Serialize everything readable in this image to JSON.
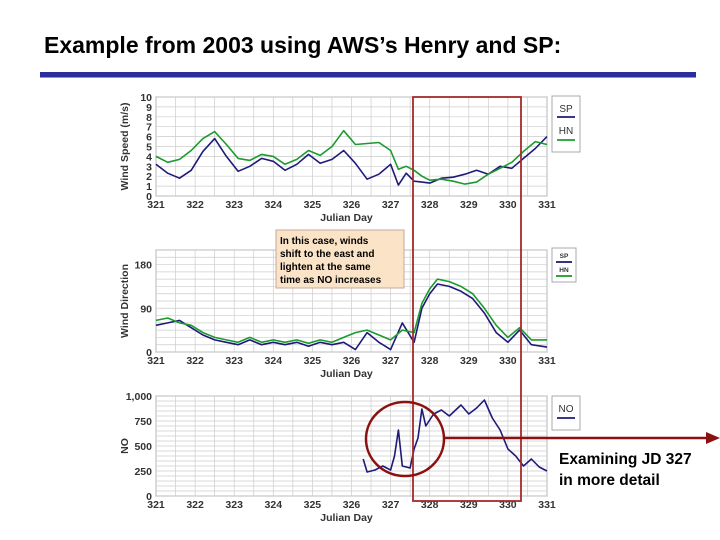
{
  "slide": {
    "title": "Example from 2003 using AWS’s Henry and SP:",
    "note_lines": [
      "Examining JD 327",
      "in more detail"
    ],
    "callout_lines": [
      "In this case, winds",
      "shift to the east and",
      "lighten at the same",
      "time as NO increases"
    ]
  },
  "colors": {
    "sp": "#1f1a7a",
    "hn": "#1b9b2e",
    "highlight": "#a62a2a",
    "circle": "#8b1010",
    "title_rule": "#2b2f9c"
  },
  "chart_data": [
    {
      "type": "line",
      "ylabel": "Wind Speed (m/s)",
      "xlabel": "Julian Day",
      "xlim": [
        321,
        331
      ],
      "ylim": [
        0,
        10
      ],
      "xticks": [
        "321",
        "322",
        "323",
        "324",
        "325",
        "326",
        "327",
        "328",
        "329",
        "330",
        "331"
      ],
      "yticks": [
        "0",
        "1",
        "2",
        "3",
        "4",
        "5",
        "6",
        "7",
        "8",
        "9",
        "10"
      ],
      "legend": [
        "SP",
        "HN"
      ],
      "series": [
        {
          "name": "SP",
          "x": [
            321,
            321.3,
            321.6,
            321.9,
            322.2,
            322.5,
            322.8,
            323.1,
            323.4,
            323.7,
            324,
            324.3,
            324.6,
            324.9,
            325.2,
            325.5,
            325.8,
            326.1,
            326.4,
            326.7,
            327,
            327.2,
            327.4,
            327.6,
            327.8,
            328,
            328.3,
            328.6,
            328.9,
            329.2,
            329.5,
            329.8,
            330.1,
            330.4,
            330.7,
            331
          ],
          "y": [
            3.2,
            2.3,
            1.8,
            2.6,
            4.5,
            5.8,
            4.0,
            2.5,
            3.0,
            3.8,
            3.5,
            2.6,
            3.2,
            4.2,
            3.3,
            3.7,
            4.6,
            3.3,
            1.7,
            2.2,
            3.2,
            1.1,
            2.3,
            1.5,
            1.4,
            1.3,
            1.8,
            1.9,
            2.2,
            2.6,
            2.2,
            3.0,
            2.8,
            3.8,
            4.8,
            6.0
          ]
        },
        {
          "name": "HN",
          "x": [
            321,
            321.3,
            321.6,
            321.9,
            322.2,
            322.5,
            322.8,
            323.1,
            323.4,
            323.7,
            324,
            324.3,
            324.6,
            324.9,
            325.2,
            325.5,
            325.8,
            326.1,
            326.4,
            326.7,
            327,
            327.2,
            327.4,
            327.6,
            327.8,
            328,
            328.3,
            328.6,
            328.9,
            329.2,
            329.5,
            329.8,
            330.1,
            330.4,
            330.7,
            331
          ],
          "y": [
            4.0,
            3.4,
            3.7,
            4.6,
            5.8,
            6.5,
            5.2,
            3.8,
            3.6,
            4.2,
            4.0,
            3.2,
            3.7,
            4.6,
            4.1,
            5.0,
            6.6,
            5.2,
            5.3,
            5.4,
            4.6,
            2.7,
            3.0,
            2.6,
            2.0,
            1.6,
            1.7,
            1.5,
            1.2,
            1.4,
            2.2,
            2.8,
            3.4,
            4.5,
            5.5,
            5.2
          ]
        }
      ]
    },
    {
      "type": "line",
      "ylabel": "Wind Direction",
      "xlabel": "Julian Day",
      "xlim": [
        321,
        331
      ],
      "ylim": [
        0,
        210
      ],
      "xticks": [
        "321",
        "322",
        "323",
        "324",
        "325",
        "326",
        "327",
        "328",
        "329",
        "330",
        "331"
      ],
      "yticks": [
        "0",
        "90",
        "180"
      ],
      "legend": [
        "SP",
        "HN"
      ],
      "series": [
        {
          "name": "SP",
          "x": [
            321,
            321.3,
            321.6,
            321.9,
            322.2,
            322.5,
            322.8,
            323.1,
            323.4,
            323.7,
            324,
            324.3,
            324.6,
            324.9,
            325.2,
            325.5,
            325.8,
            326.1,
            326.4,
            326.7,
            327,
            327.3,
            327.6,
            327.8,
            328,
            328.2,
            328.5,
            328.8,
            329.1,
            329.4,
            329.7,
            330,
            330.3,
            330.6,
            331
          ],
          "y": [
            55,
            60,
            65,
            50,
            35,
            25,
            20,
            15,
            25,
            15,
            20,
            15,
            20,
            12,
            20,
            15,
            20,
            5,
            40,
            20,
            5,
            60,
            20,
            90,
            120,
            140,
            135,
            125,
            110,
            80,
            40,
            20,
            45,
            15,
            10
          ]
        },
        {
          "name": "HN",
          "x": [
            321,
            321.3,
            321.6,
            321.9,
            322.2,
            322.5,
            322.8,
            323.1,
            323.4,
            323.7,
            324,
            324.3,
            324.6,
            324.9,
            325.2,
            325.5,
            325.8,
            326.1,
            326.4,
            326.7,
            327,
            327.3,
            327.6,
            327.8,
            328,
            328.2,
            328.5,
            328.8,
            329.1,
            329.4,
            329.7,
            330,
            330.3,
            330.6,
            331
          ],
          "y": [
            65,
            70,
            60,
            55,
            40,
            30,
            25,
            20,
            30,
            20,
            25,
            20,
            25,
            18,
            25,
            20,
            30,
            40,
            45,
            35,
            25,
            45,
            40,
            100,
            130,
            150,
            145,
            135,
            120,
            90,
            55,
            30,
            50,
            25,
            25
          ]
        }
      ]
    },
    {
      "type": "line",
      "ylabel": "NO",
      "xlabel": "Julian Day",
      "xlim": [
        321,
        331
      ],
      "ylim": [
        0,
        1000
      ],
      "xticks": [
        "321",
        "322",
        "323",
        "324",
        "325",
        "326",
        "327",
        "328",
        "329",
        "330",
        "331"
      ],
      "yticks": [
        "0",
        "250",
        "500",
        "750",
        "1,000"
      ],
      "legend": [
        "NO"
      ],
      "series": [
        {
          "name": "NO",
          "x": [
            326.3,
            326.4,
            326.6,
            326.8,
            327,
            327.1,
            327.2,
            327.3,
            327.5,
            327.6,
            327.7,
            327.8,
            327.9,
            328.1,
            328.3,
            328.5,
            328.8,
            329,
            329.2,
            329.4,
            329.6,
            329.8,
            330,
            330.2,
            330.4,
            330.6,
            330.8,
            331
          ],
          "y": [
            370,
            240,
            260,
            300,
            260,
            400,
            660,
            300,
            280,
            470,
            580,
            870,
            700,
            820,
            860,
            800,
            910,
            820,
            880,
            960,
            780,
            660,
            470,
            400,
            300,
            370,
            290,
            250
          ]
        }
      ]
    }
  ]
}
